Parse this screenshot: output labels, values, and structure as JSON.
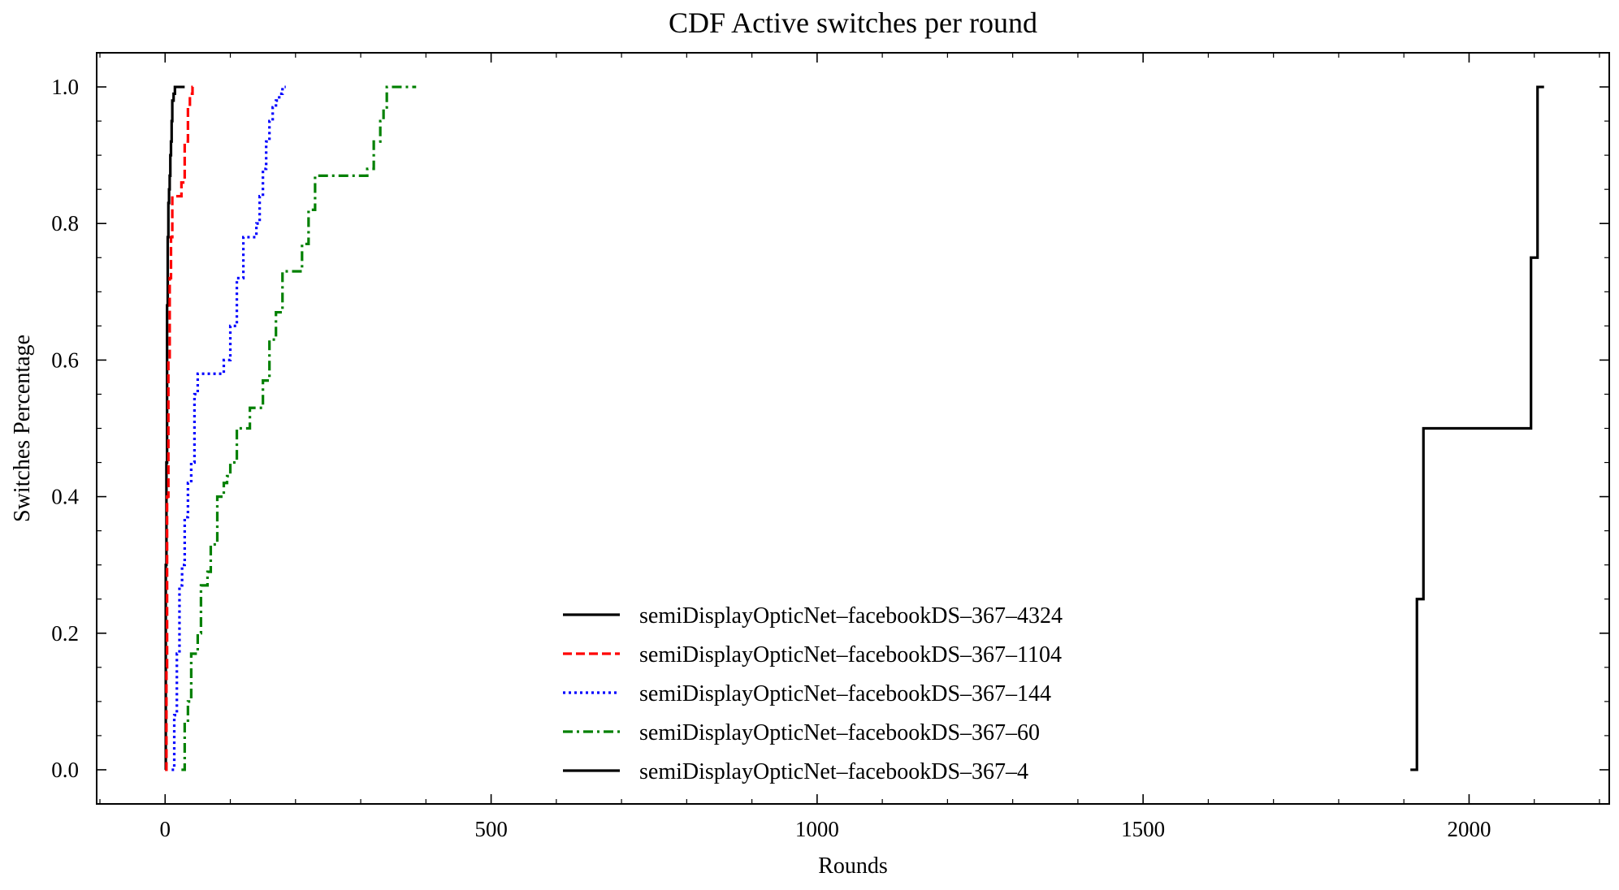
{
  "chart_data": {
    "type": "line",
    "step": "post",
    "title": "CDF Active switches per round",
    "xlabel": "Rounds",
    "ylabel": "Switches Percentage",
    "xlim": [
      -105,
      2215
    ],
    "ylim": [
      -0.05,
      1.05
    ],
    "xticks": [
      0,
      500,
      1000,
      1500,
      2000
    ],
    "xtick_labels": [
      "0",
      "500",
      "1000",
      "1500",
      "2000"
    ],
    "yticks": [
      0.0,
      0.2,
      0.4,
      0.6,
      0.8,
      1.0
    ],
    "ytick_labels": [
      "0.0",
      "0.2",
      "0.4",
      "0.6",
      "0.8",
      "1.0"
    ],
    "grid": false,
    "legend_position": "lower-center",
    "series": [
      {
        "name": "semiDisplayOpticNet–facebookDS–367–4324",
        "color": "#000000",
        "dash": "solid",
        "x": [
          0,
          1,
          1,
          2,
          3,
          3,
          4,
          5,
          5,
          6,
          7,
          8,
          9,
          10,
          11,
          13,
          15,
          20,
          30
        ],
        "y": [
          0,
          0.1,
          0.3,
          0.45,
          0.58,
          0.68,
          0.78,
          0.8,
          0.83,
          0.85,
          0.87,
          0.9,
          0.92,
          0.95,
          0.98,
          0.99,
          1.0,
          1.0,
          1.0
        ]
      },
      {
        "name": "semiDisplayOpticNet–facebookDS–367–1104",
        "color": "#ff0000",
        "dash": "dashed",
        "x": [
          0,
          2,
          3,
          5,
          7,
          9,
          11,
          15,
          25,
          30,
          35,
          38,
          42,
          47
        ],
        "y": [
          0,
          0.15,
          0.4,
          0.6,
          0.72,
          0.78,
          0.84,
          0.84,
          0.86,
          0.92,
          0.97,
          0.99,
          1.0,
          1.0
        ]
      },
      {
        "name": "semiDisplayOpticNet–facebookDS–367–144",
        "color": "#0000ff",
        "dash": "dotted",
        "x": [
          10,
          14,
          18,
          22,
          26,
          30,
          35,
          40,
          45,
          50,
          55,
          90,
          100,
          110,
          120,
          125,
          140,
          145,
          150,
          155,
          160,
          165,
          170,
          175,
          180,
          185
        ],
        "y": [
          0,
          0.08,
          0.17,
          0.27,
          0.3,
          0.37,
          0.42,
          0.45,
          0.55,
          0.58,
          0.58,
          0.6,
          0.65,
          0.72,
          0.78,
          0.78,
          0.8,
          0.84,
          0.88,
          0.92,
          0.95,
          0.97,
          0.98,
          0.99,
          1.0,
          1.0
        ]
      },
      {
        "name": "semiDisplayOpticNet–facebookDS–367–60",
        "color": "#008000",
        "dash": "dashdot",
        "x": [
          25,
          30,
          35,
          40,
          45,
          50,
          55,
          60,
          65,
          70,
          75,
          80,
          85,
          90,
          95,
          100,
          110,
          120,
          130,
          140,
          150,
          160,
          170,
          180,
          190,
          200,
          210,
          220,
          230,
          310,
          320,
          330,
          335,
          340,
          345,
          350,
          360,
          370,
          380,
          385
        ],
        "y": [
          0,
          0.07,
          0.1,
          0.17,
          0.17,
          0.2,
          0.27,
          0.27,
          0.29,
          0.33,
          0.33,
          0.4,
          0.4,
          0.42,
          0.43,
          0.45,
          0.5,
          0.5,
          0.53,
          0.53,
          0.57,
          0.63,
          0.67,
          0.73,
          0.73,
          0.73,
          0.77,
          0.82,
          0.87,
          0.88,
          0.92,
          0.95,
          0.97,
          1.0,
          1.0,
          1.0,
          1.0,
          1.0,
          1.0,
          1.0
        ]
      },
      {
        "name": "semiDisplayOpticNet–facebookDS–367–4",
        "color": "#000000",
        "dash": "solid",
        "x": [
          1910,
          1920,
          1930,
          2095,
          2105,
          2115
        ],
        "y": [
          0,
          0.25,
          0.5,
          0.75,
          1.0,
          1.0
        ]
      }
    ]
  }
}
